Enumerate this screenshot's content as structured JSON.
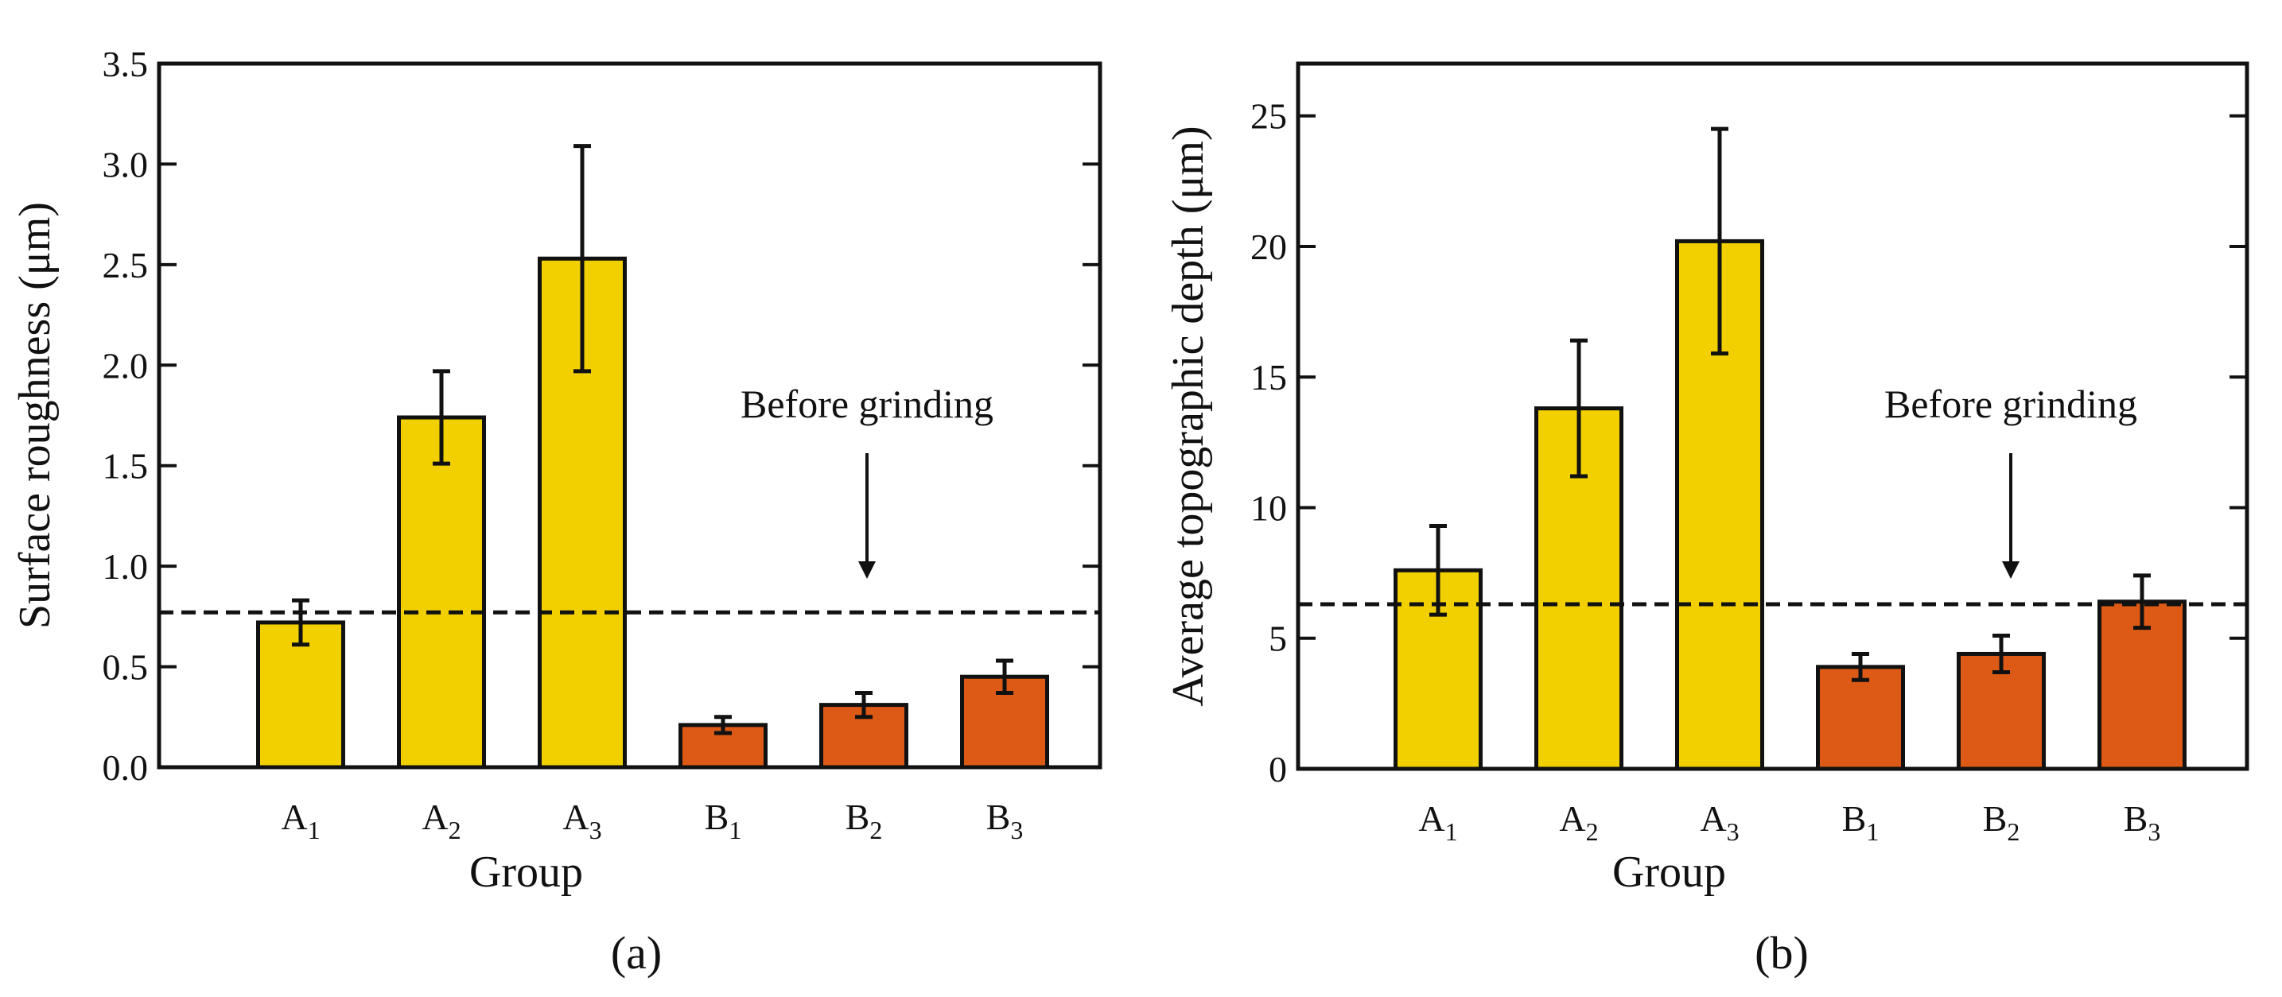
{
  "chart_data": [
    {
      "type": "bar",
      "panel_label": "(a)",
      "xlabel": "Group",
      "ylabel": "Surface roughness (μm)",
      "ylim": [
        0,
        3.5
      ],
      "yticks": [
        0.0,
        0.5,
        1.0,
        1.5,
        2.0,
        2.5,
        3.0,
        3.5
      ],
      "ytick_labels": [
        "0.0",
        "0.5",
        "1.0",
        "1.5",
        "2.0",
        "2.5",
        "3.0",
        "3.5"
      ],
      "categories": [
        {
          "base": "A",
          "sub": "1"
        },
        {
          "base": "A",
          "sub": "2"
        },
        {
          "base": "A",
          "sub": "3"
        },
        {
          "base": "B",
          "sub": "1"
        },
        {
          "base": "B",
          "sub": "2"
        },
        {
          "base": "B",
          "sub": "3"
        }
      ],
      "values": [
        0.72,
        1.74,
        2.53,
        0.21,
        0.31,
        0.45
      ],
      "errors": [
        0.11,
        0.23,
        0.56,
        0.04,
        0.06,
        0.08
      ],
      "bar_colors": [
        "#F2D000",
        "#F2D000",
        "#F2D000",
        "#DC5A16",
        "#DC5A16",
        "#DC5A16"
      ],
      "reference_line": {
        "value": 0.77,
        "style": "dashed",
        "label": "Before grinding"
      },
      "grid": false
    },
    {
      "type": "bar",
      "panel_label": "(b)",
      "xlabel": "Group",
      "ylabel": "Average topographic depth (μm)",
      "ylim": [
        0,
        27
      ],
      "yticks": [
        0,
        5,
        10,
        15,
        20,
        25
      ],
      "ytick_labels": [
        "0",
        "5",
        "10",
        "15",
        "20",
        "25"
      ],
      "categories": [
        {
          "base": "A",
          "sub": "1"
        },
        {
          "base": "A",
          "sub": "2"
        },
        {
          "base": "A",
          "sub": "3"
        },
        {
          "base": "B",
          "sub": "1"
        },
        {
          "base": "B",
          "sub": "2"
        },
        {
          "base": "B",
          "sub": "3"
        }
      ],
      "values": [
        7.6,
        13.8,
        20.2,
        3.9,
        4.4,
        6.4
      ],
      "errors": [
        1.7,
        2.6,
        4.3,
        0.5,
        0.7,
        1.0
      ],
      "bar_colors": [
        "#F2D000",
        "#F2D000",
        "#F2D000",
        "#DC5A16",
        "#DC5A16",
        "#DC5A16"
      ],
      "reference_line": {
        "value": 6.3,
        "style": "dashed",
        "label": "Before grinding"
      },
      "grid": false
    }
  ]
}
